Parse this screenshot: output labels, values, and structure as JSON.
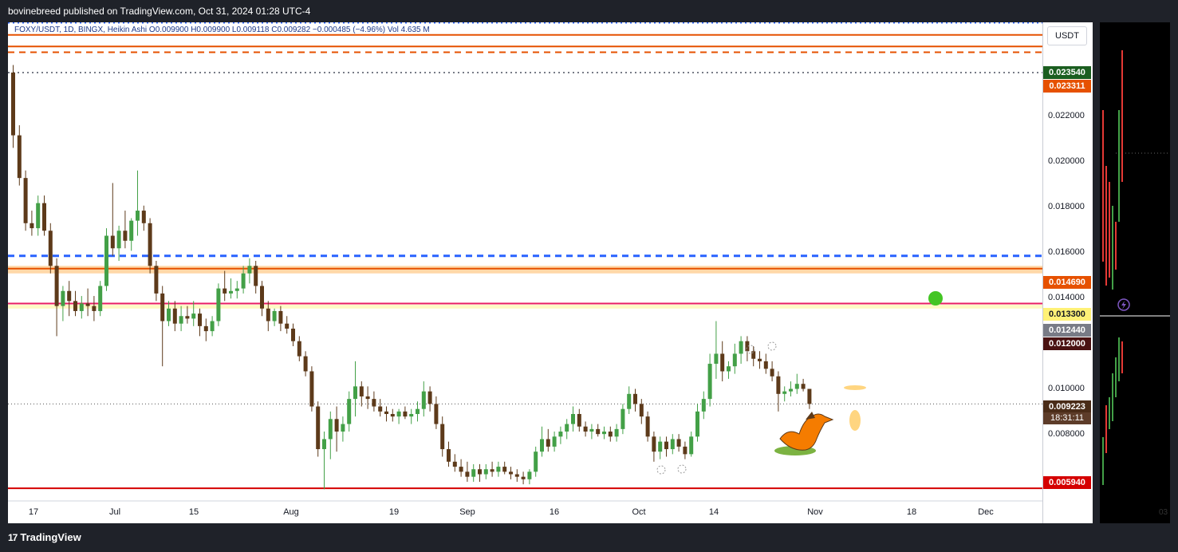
{
  "header": {
    "publisher": "bovinebreed published on TradingView.com, Oct 31, 2024 01:28 UTC-4"
  },
  "legend": {
    "text": "FOXY/USDT, 1D, BINGX, Heikin Ashi  O0.009900  H0.009900  L0.009118  C0.009282  −0.000485 (−4.96%)  Vol 4.635 M"
  },
  "price_scale": {
    "currency": "USDT",
    "ticks": [
      "0.022000",
      "0.020000",
      "0.018000",
      "0.016000",
      "0.014000",
      "0.010000",
      "0.008000"
    ],
    "labels": [
      {
        "text": "0.023540",
        "color": "#1b5e20"
      },
      {
        "text": "0.023311",
        "color": "#e65100"
      },
      {
        "text": "0.014690",
        "color": "#e65100"
      },
      {
        "text": "0.013300",
        "color": "#fff176",
        "text_color": "#131722"
      },
      {
        "text": "0.012440",
        "color": "#787b86"
      },
      {
        "text": "0.012000",
        "color": "#4a1212"
      },
      {
        "text": "0.009223",
        "color": "#4a2c18"
      },
      {
        "text": "0.005940",
        "color": "#d50000"
      }
    ],
    "countdown": "18:31:11"
  },
  "time_axis": {
    "ticks": [
      "17",
      "Jul",
      "15",
      "Aug",
      "19",
      "Sep",
      "16",
      "Oct",
      "14",
      "Nov",
      "18",
      "Dec"
    ]
  },
  "footer": {
    "brand": "TradingView",
    "mini_panel_label": "03"
  },
  "chart_data": {
    "type": "candlestick",
    "symbol": "FOXY/USDT",
    "timeframe": "1D",
    "exchange": "BINGX",
    "style": "Heikin Ashi",
    "currency": "USDT",
    "ylim": [
      0.0055,
      0.0245
    ],
    "bull_color": "#43a047",
    "bear_color": "#5d3a1a",
    "x_ticks": [
      "17",
      "Jul",
      "15",
      "Aug",
      "19",
      "Sep",
      "16",
      "Oct",
      "14",
      "Nov",
      "18",
      "Dec"
    ],
    "first_date": "2024-06-13",
    "candles": [
      [
        0.0225,
        0.0228,
        0.0195,
        0.02
      ],
      [
        0.02,
        0.0204,
        0.018,
        0.0183
      ],
      [
        0.0183,
        0.0186,
        0.0162,
        0.0165
      ],
      [
        0.0165,
        0.017,
        0.016,
        0.0163
      ],
      [
        0.0163,
        0.0176,
        0.016,
        0.0173
      ],
      [
        0.0173,
        0.0176,
        0.016,
        0.0162
      ],
      [
        0.0162,
        0.0165,
        0.0145,
        0.0148
      ],
      [
        0.0148,
        0.0151,
        0.012,
        0.0132
      ],
      [
        0.0132,
        0.014,
        0.0126,
        0.0138
      ],
      [
        0.0138,
        0.0142,
        0.0128,
        0.0134
      ],
      [
        0.0134,
        0.0138,
        0.0128,
        0.013
      ],
      [
        0.013,
        0.0136,
        0.0127,
        0.0133
      ],
      [
        0.0133,
        0.0139,
        0.0128,
        0.0132
      ],
      [
        0.0132,
        0.0136,
        0.0126,
        0.013
      ],
      [
        0.013,
        0.0142,
        0.0128,
        0.014
      ],
      [
        0.014,
        0.0163,
        0.0138,
        0.016
      ],
      [
        0.016,
        0.0181,
        0.0152,
        0.0155
      ],
      [
        0.0155,
        0.0164,
        0.015,
        0.0162
      ],
      [
        0.0162,
        0.017,
        0.0155,
        0.0158
      ],
      [
        0.0158,
        0.0167,
        0.0154,
        0.0166
      ],
      [
        0.0166,
        0.0186,
        0.016,
        0.017
      ],
      [
        0.017,
        0.0172,
        0.0162,
        0.0165
      ],
      [
        0.0165,
        0.0167,
        0.0145,
        0.0148
      ],
      [
        0.0148,
        0.015,
        0.0134,
        0.0137
      ],
      [
        0.0137,
        0.014,
        0.0108,
        0.0126
      ],
      [
        0.0126,
        0.0134,
        0.0124,
        0.0131
      ],
      [
        0.0131,
        0.0134,
        0.0122,
        0.0125
      ],
      [
        0.0125,
        0.0132,
        0.0122,
        0.0128
      ],
      [
        0.0128,
        0.0132,
        0.0125,
        0.0127
      ],
      [
        0.0127,
        0.0134,
        0.0124,
        0.0129
      ],
      [
        0.0129,
        0.0131,
        0.012,
        0.0124
      ],
      [
        0.0124,
        0.0127,
        0.0118,
        0.0122
      ],
      [
        0.0122,
        0.0128,
        0.012,
        0.0126
      ],
      [
        0.0126,
        0.0141,
        0.0124,
        0.0139
      ],
      [
        0.0139,
        0.0146,
        0.0134,
        0.0137
      ],
      [
        0.0137,
        0.0143,
        0.0135,
        0.0138
      ],
      [
        0.0138,
        0.0142,
        0.0135,
        0.0139
      ],
      [
        0.0139,
        0.0148,
        0.0137,
        0.0145
      ],
      [
        0.0145,
        0.0151,
        0.0141,
        0.0148
      ],
      [
        0.0148,
        0.015,
        0.0137,
        0.014
      ],
      [
        0.014,
        0.0142,
        0.0128,
        0.0131
      ],
      [
        0.0131,
        0.0134,
        0.0122,
        0.0126
      ],
      [
        0.0126,
        0.0131,
        0.0124,
        0.013
      ],
      [
        0.013,
        0.0132,
        0.0122,
        0.0125
      ],
      [
        0.0125,
        0.0128,
        0.0121,
        0.0123
      ],
      [
        0.0123,
        0.0125,
        0.0116,
        0.0118
      ],
      [
        0.0118,
        0.012,
        0.011,
        0.0112
      ],
      [
        0.0112,
        0.0114,
        0.0104,
        0.0106
      ],
      [
        0.0106,
        0.0108,
        0.009,
        0.0092
      ],
      [
        0.0092,
        0.0094,
        0.0072,
        0.0075
      ],
      [
        0.0075,
        0.0082,
        0.0059,
        0.0079
      ],
      [
        0.0079,
        0.009,
        0.0071,
        0.0087
      ],
      [
        0.0087,
        0.0092,
        0.0074,
        0.0082
      ],
      [
        0.0082,
        0.0088,
        0.0078,
        0.0085
      ],
      [
        0.0085,
        0.0098,
        0.0082,
        0.0095
      ],
      [
        0.0095,
        0.011,
        0.0088,
        0.01
      ],
      [
        0.01,
        0.0102,
        0.0092,
        0.0096
      ],
      [
        0.0096,
        0.01,
        0.0091,
        0.0095
      ],
      [
        0.0095,
        0.0098,
        0.009,
        0.0092
      ],
      [
        0.0092,
        0.0095,
        0.0088,
        0.009
      ],
      [
        0.009,
        0.0092,
        0.0086,
        0.0089
      ],
      [
        0.0089,
        0.0091,
        0.0086,
        0.0088
      ],
      [
        0.0088,
        0.0091,
        0.0085,
        0.009
      ],
      [
        0.009,
        0.0092,
        0.0087,
        0.0088
      ],
      [
        0.0088,
        0.0091,
        0.0085,
        0.0089
      ],
      [
        0.0089,
        0.0094,
        0.0086,
        0.0091
      ],
      [
        0.0091,
        0.0102,
        0.0088,
        0.0098
      ],
      [
        0.0098,
        0.01,
        0.009,
        0.0093
      ],
      [
        0.0093,
        0.0096,
        0.0083,
        0.0085
      ],
      [
        0.0085,
        0.0088,
        0.0072,
        0.0075
      ],
      [
        0.0075,
        0.0078,
        0.0068,
        0.007
      ],
      [
        0.007,
        0.0073,
        0.0066,
        0.0068
      ],
      [
        0.0068,
        0.0071,
        0.0064,
        0.0066
      ],
      [
        0.0066,
        0.007,
        0.0062,
        0.0064
      ],
      [
        0.0064,
        0.0069,
        0.0062,
        0.0067
      ],
      [
        0.0067,
        0.0069,
        0.0062,
        0.0065
      ],
      [
        0.0065,
        0.0069,
        0.0063,
        0.0067
      ],
      [
        0.0067,
        0.007,
        0.0064,
        0.0066
      ],
      [
        0.0066,
        0.007,
        0.0064,
        0.0068
      ],
      [
        0.0068,
        0.007,
        0.0065,
        0.0066
      ],
      [
        0.0066,
        0.0068,
        0.0063,
        0.0065
      ],
      [
        0.0065,
        0.0067,
        0.0062,
        0.0064
      ],
      [
        0.0064,
        0.0066,
        0.0061,
        0.0063
      ],
      [
        0.0063,
        0.0067,
        0.0061,
        0.0066
      ],
      [
        0.0066,
        0.0076,
        0.0064,
        0.0074
      ],
      [
        0.0074,
        0.0084,
        0.0072,
        0.0079
      ],
      [
        0.0079,
        0.0083,
        0.0074,
        0.0076
      ],
      [
        0.0076,
        0.0082,
        0.0074,
        0.008
      ],
      [
        0.008,
        0.0084,
        0.0077,
        0.0082
      ],
      [
        0.0082,
        0.0087,
        0.0079,
        0.0085
      ],
      [
        0.0085,
        0.0092,
        0.0082,
        0.0089
      ],
      [
        0.0089,
        0.0091,
        0.0082,
        0.0084
      ],
      [
        0.0084,
        0.0086,
        0.008,
        0.0082
      ],
      [
        0.0082,
        0.0085,
        0.0079,
        0.0083
      ],
      [
        0.0083,
        0.0085,
        0.008,
        0.0081
      ],
      [
        0.0081,
        0.0084,
        0.0079,
        0.0082
      ],
      [
        0.0082,
        0.0084,
        0.0078,
        0.008
      ],
      [
        0.008,
        0.0085,
        0.0078,
        0.0083
      ],
      [
        0.0083,
        0.0093,
        0.0081,
        0.0091
      ],
      [
        0.0091,
        0.01,
        0.0089,
        0.0097
      ],
      [
        0.0097,
        0.0099,
        0.009,
        0.0093
      ],
      [
        0.0093,
        0.0095,
        0.0085,
        0.0088
      ],
      [
        0.0088,
        0.009,
        0.0078,
        0.008
      ],
      [
        0.008,
        0.0082,
        0.007,
        0.0074
      ],
      [
        0.0074,
        0.008,
        0.0071,
        0.0078
      ],
      [
        0.0078,
        0.008,
        0.0072,
        0.0075
      ],
      [
        0.0075,
        0.0081,
        0.0073,
        0.0079
      ],
      [
        0.0079,
        0.0081,
        0.0074,
        0.0076
      ],
      [
        0.0076,
        0.0078,
        0.0071,
        0.0073
      ],
      [
        0.0073,
        0.0082,
        0.0072,
        0.008
      ],
      [
        0.008,
        0.0093,
        0.0078,
        0.009
      ],
      [
        0.009,
        0.0098,
        0.0087,
        0.0095
      ],
      [
        0.0095,
        0.0113,
        0.0092,
        0.0109
      ],
      [
        0.0109,
        0.0126,
        0.0103,
        0.0113
      ],
      [
        0.0113,
        0.0118,
        0.0102,
        0.0106
      ],
      [
        0.0106,
        0.011,
        0.0103,
        0.0108
      ],
      [
        0.0108,
        0.0117,
        0.0105,
        0.0113
      ],
      [
        0.0113,
        0.012,
        0.0109,
        0.0118
      ],
      [
        0.0118,
        0.012,
        0.011,
        0.0114
      ],
      [
        0.0114,
        0.0116,
        0.0108,
        0.0111
      ],
      [
        0.0111,
        0.0114,
        0.0107,
        0.011
      ],
      [
        0.011,
        0.0113,
        0.0105,
        0.0107
      ],
      [
        0.0107,
        0.011,
        0.0102,
        0.0104
      ],
      [
        0.0104,
        0.0106,
        0.009,
        0.0097
      ],
      [
        0.0097,
        0.01,
        0.0094,
        0.0098
      ],
      [
        0.0098,
        0.0102,
        0.0096,
        0.0099
      ],
      [
        0.0099,
        0.0105,
        0.0097,
        0.0101
      ],
      [
        0.0101,
        0.0103,
        0.0098,
        0.0099
      ],
      [
        0.0099,
        0.0099,
        0.0091,
        0.0093
      ]
    ],
    "hlines": [
      {
        "price": 0.0247,
        "color": "#e65100",
        "style": "solid"
      },
      {
        "price": 0.0245,
        "color": "#2962ff",
        "style": "dotted"
      },
      {
        "price": 0.024,
        "color": "#e65100",
        "style": "solid"
      },
      {
        "price": 0.02354,
        "color": "#e65100",
        "style": "solid"
      },
      {
        "price": 0.02331,
        "color": "#e65100",
        "style": "dashed"
      },
      {
        "price": 0.0225,
        "color": "#787b86",
        "style": "dotted"
      },
      {
        "price": 0.0152,
        "color": "#2962ff",
        "style": "dashed"
      },
      {
        "price": 0.01469,
        "color": "#e65100",
        "style": "solid"
      },
      {
        "price": 0.0133,
        "color": "#e91e63",
        "style": "solid"
      },
      {
        "price": 0.00594,
        "color": "#d50000",
        "style": "solid"
      }
    ]
  }
}
